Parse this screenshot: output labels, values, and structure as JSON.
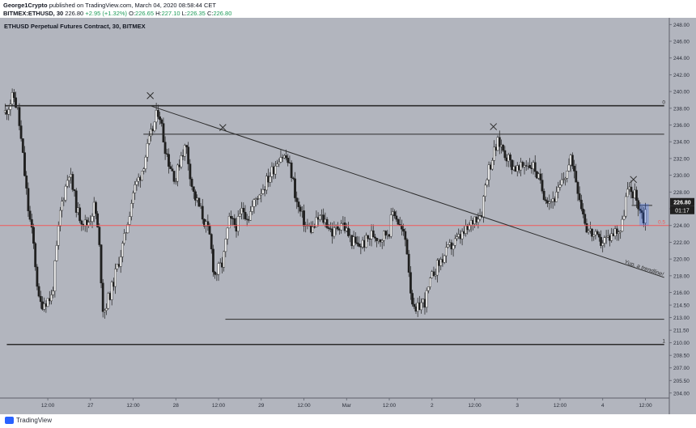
{
  "header": {
    "user": "George1Crypto",
    "published": "published on TradingView.com, March 04, 2020 08:58:44 CET",
    "symbol": "BITMEX:ETHUSD, 30",
    "last": "226.80",
    "change": "+2.95 (+1.32%)",
    "o_label": "O:",
    "o_value": "226.65",
    "h_label": "H:",
    "h_value": "227.10",
    "l_label": "L:",
    "l_value": "226.35",
    "c_label": "C:",
    "c_value": "226.80"
  },
  "chart_title": "ETHUSD Perpetual Futures Contract, 30, BITMEX",
  "price_label": "226.80",
  "countdown_label": "01:17",
  "footer": {
    "brand": "TradingView"
  },
  "colors": {
    "background": "#b2b5be",
    "up": "#efefef",
    "down": "#1f1f1f",
    "fib": "#f05a5a",
    "line": "#2c2c2c",
    "accent": "#2962ff"
  },
  "chart_data": {
    "type": "candlestick",
    "title": "ETHUSD Perpetual Futures Contract, 30, BITMEX",
    "interval": "30 min",
    "ylim": [
      203.4,
      248.8
    ],
    "y_ticks": [
      204.0,
      205.5,
      207.0,
      208.5,
      210.0,
      211.5,
      213.0,
      214.5,
      216.0,
      218.0,
      220.0,
      222.0,
      224.0,
      226.0,
      228.0,
      230.0,
      232.0,
      234.0,
      236.0,
      238.0,
      240.0,
      242.0,
      244.0,
      246.0,
      248.0
    ],
    "x_tick_labels": [
      "12:00",
      "27",
      "12:00",
      "28",
      "12:00",
      "29",
      "12:00",
      "Mar",
      "12:00",
      "2",
      "12:00",
      "3",
      "12:00",
      "4",
      "12:00"
    ],
    "x_tick_positions": [
      0.5,
      1,
      1.5,
      2,
      2.5,
      3,
      3.5,
      4,
      4.5,
      5,
      5.5,
      6,
      6.5,
      7,
      7.5
    ],
    "x_range": [
      -0.06,
      7.78
    ],
    "price_path": [
      [
        0.0,
        237.5
      ],
      [
        0.1,
        239.5
      ],
      [
        0.15,
        237.5
      ],
      [
        0.2,
        233.0
      ],
      [
        0.27,
        226.0
      ],
      [
        0.33,
        222.0
      ],
      [
        0.4,
        214.5
      ],
      [
        0.55,
        215.5
      ],
      [
        0.65,
        226.0
      ],
      [
        0.75,
        230.5
      ],
      [
        0.85,
        225.5
      ],
      [
        0.95,
        224.0
      ],
      [
        1.0,
        225.0
      ],
      [
        1.05,
        226.5
      ],
      [
        1.1,
        222.0
      ],
      [
        1.15,
        213.5
      ],
      [
        1.25,
        216.5
      ],
      [
        1.4,
        222.5
      ],
      [
        1.5,
        228.0
      ],
      [
        1.6,
        230.5
      ],
      [
        1.7,
        234.5
      ],
      [
        1.8,
        238.0
      ],
      [
        1.86,
        234.0
      ],
      [
        1.92,
        231.5
      ],
      [
        2.0,
        229.5
      ],
      [
        2.06,
        232.5
      ],
      [
        2.12,
        233.5
      ],
      [
        2.2,
        228.0
      ],
      [
        2.3,
        225.5
      ],
      [
        2.4,
        222.5
      ],
      [
        2.45,
        218.0
      ],
      [
        2.55,
        219.5
      ],
      [
        2.62,
        224.5
      ],
      [
        2.72,
        224.0
      ],
      [
        2.78,
        226.0
      ],
      [
        2.85,
        225.0
      ],
      [
        2.95,
        227.5
      ],
      [
        3.05,
        229.0
      ],
      [
        3.15,
        231.0
      ],
      [
        3.22,
        232.5
      ],
      [
        3.3,
        232.0
      ],
      [
        3.36,
        230.0
      ],
      [
        3.42,
        226.5
      ],
      [
        3.52,
        224.0
      ],
      [
        3.6,
        223.5
      ],
      [
        3.68,
        225.0
      ],
      [
        3.76,
        224.5
      ],
      [
        3.84,
        223.0
      ],
      [
        3.94,
        224.5
      ],
      [
        4.04,
        222.5
      ],
      [
        4.12,
        221.5
      ],
      [
        4.22,
        222.0
      ],
      [
        4.3,
        223.0
      ],
      [
        4.4,
        222.5
      ],
      [
        4.5,
        223.5
      ],
      [
        4.55,
        226.0
      ],
      [
        4.62,
        224.0
      ],
      [
        4.7,
        222.0
      ],
      [
        4.75,
        216.5
      ],
      [
        4.8,
        213.0
      ],
      [
        4.85,
        214.5
      ],
      [
        4.92,
        215.0
      ],
      [
        5.02,
        218.5
      ],
      [
        5.12,
        220.0
      ],
      [
        5.22,
        221.5
      ],
      [
        5.32,
        222.5
      ],
      [
        5.42,
        223.5
      ],
      [
        5.5,
        225.0
      ],
      [
        5.58,
        225.5
      ],
      [
        5.64,
        230.0
      ],
      [
        5.72,
        232.5
      ],
      [
        5.78,
        234.0
      ],
      [
        5.84,
        233.0
      ],
      [
        5.92,
        231.5
      ],
      [
        6.02,
        230.5
      ],
      [
        6.1,
        231.5
      ],
      [
        6.2,
        231.0
      ],
      [
        6.3,
        228.0
      ],
      [
        6.38,
        227.0
      ],
      [
        6.46,
        227.5
      ],
      [
        6.56,
        230.0
      ],
      [
        6.64,
        232.0
      ],
      [
        6.7,
        229.0
      ],
      [
        6.76,
        226.0
      ],
      [
        6.82,
        223.5
      ],
      [
        6.88,
        223.0
      ],
      [
        6.96,
        222.0
      ],
      [
        7.06,
        222.5
      ],
      [
        7.16,
        223.5
      ],
      [
        7.22,
        223.5
      ],
      [
        7.28,
        228.0
      ],
      [
        7.36,
        228.0
      ],
      [
        7.42,
        226.5
      ],
      [
        7.48,
        224.8
      ],
      [
        7.52,
        226.8
      ]
    ],
    "annotations": {
      "hlines": [
        {
          "y": 238.3,
          "x0": 0.0,
          "x1": 7.72,
          "label": "0"
        },
        {
          "y": 234.9,
          "x0": 1.62,
          "x1": 7.72
        },
        {
          "y": 212.8,
          "x0": 2.58,
          "x1": 7.72
        },
        {
          "y": 209.8,
          "x0": 0.02,
          "x1": 7.72,
          "label": "1"
        },
        {
          "y": 226.4,
          "x0": 7.34,
          "x1": 7.58
        }
      ],
      "fib_line": {
        "y": 224.0,
        "label": "0.5"
      },
      "trendline": {
        "x0": 1.7,
        "y0": 238.3,
        "x1": 7.72,
        "y1": 217.8,
        "label": "Yup, a trendline!"
      },
      "cross_marks": [
        [
          1.7,
          239.5
        ],
        [
          2.55,
          235.7
        ],
        [
          5.72,
          235.8
        ],
        [
          7.36,
          229.5
        ]
      ]
    }
  }
}
